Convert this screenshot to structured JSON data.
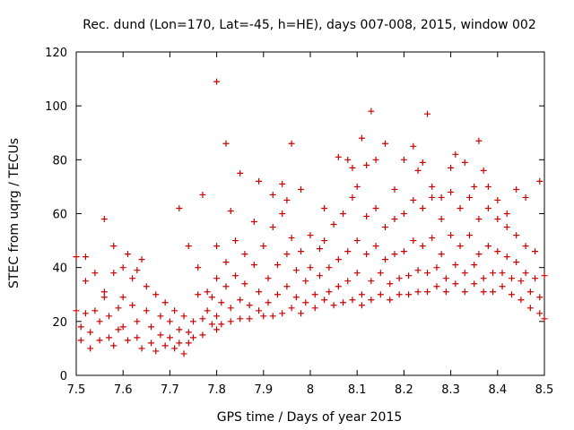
{
  "chart_data": {
    "type": "scatter",
    "title": "Rec. dund (Lon=170, Lat=-45, h=HE), days 007-008, 2015, window 002",
    "xlabel": "GPS time / Days of year 2015",
    "ylabel": "STEC from uqrg / TECUs",
    "xlim": [
      7.5,
      8.5
    ],
    "ylim": [
      0,
      120
    ],
    "x_ticks": [
      "7.5",
      "7.6",
      "7.7",
      "7.8",
      "7.9",
      "8",
      "8.1",
      "8.2",
      "8.3",
      "8.4",
      "8.5"
    ],
    "y_ticks": [
      "0",
      "20",
      "40",
      "60",
      "80",
      "100",
      "120"
    ],
    "grid": false,
    "marker": "+",
    "color": "#cc0000",
    "points": [
      [
        7.5,
        44
      ],
      [
        7.5,
        24
      ],
      [
        7.51,
        13
      ],
      [
        7.51,
        18
      ],
      [
        7.52,
        44
      ],
      [
        7.52,
        35
      ],
      [
        7.52,
        23
      ],
      [
        7.53,
        10
      ],
      [
        7.53,
        16
      ],
      [
        7.54,
        38
      ],
      [
        7.54,
        24
      ],
      [
        7.55,
        13
      ],
      [
        7.55,
        20
      ],
      [
        7.56,
        31
      ],
      [
        7.56,
        29
      ],
      [
        7.57,
        22
      ],
      [
        7.57,
        14
      ],
      [
        7.58,
        11
      ],
      [
        7.58,
        38
      ],
      [
        7.59,
        25
      ],
      [
        7.59,
        17
      ],
      [
        7.6,
        40
      ],
      [
        7.6,
        29
      ],
      [
        7.6,
        18
      ],
      [
        7.61,
        13
      ],
      [
        7.61,
        45
      ],
      [
        7.62,
        36
      ],
      [
        7.62,
        26
      ],
      [
        7.63,
        20
      ],
      [
        7.63,
        14
      ],
      [
        7.64,
        10
      ],
      [
        7.64,
        43
      ],
      [
        7.65,
        33
      ],
      [
        7.65,
        24
      ],
      [
        7.66,
        18
      ],
      [
        7.66,
        12
      ],
      [
        7.67,
        9
      ],
      [
        7.67,
        30
      ],
      [
        7.68,
        22
      ],
      [
        7.68,
        15
      ],
      [
        7.69,
        11
      ],
      [
        7.69,
        27
      ],
      [
        7.7,
        20
      ],
      [
        7.7,
        14
      ],
      [
        7.71,
        10
      ],
      [
        7.71,
        24
      ],
      [
        7.72,
        17
      ],
      [
        7.72,
        12
      ],
      [
        7.73,
        8
      ],
      [
        7.73,
        22
      ],
      [
        7.74,
        16
      ],
      [
        7.74,
        12
      ],
      [
        7.75,
        20
      ],
      [
        7.75,
        14
      ],
      [
        7.76,
        40
      ],
      [
        7.76,
        30
      ],
      [
        7.77,
        21
      ],
      [
        7.77,
        15
      ],
      [
        7.78,
        31
      ],
      [
        7.78,
        24
      ],
      [
        7.79,
        19
      ],
      [
        7.79,
        29
      ],
      [
        7.8,
        22
      ],
      [
        7.8,
        17
      ],
      [
        7.56,
        58
      ],
      [
        7.58,
        48
      ],
      [
        7.63,
        39
      ],
      [
        7.72,
        62
      ],
      [
        7.74,
        48
      ],
      [
        7.77,
        67
      ],
      [
        7.8,
        109
      ],
      [
        7.82,
        86
      ],
      [
        7.83,
        61
      ],
      [
        7.8,
        48
      ],
      [
        7.8,
        36
      ],
      [
        7.81,
        27
      ],
      [
        7.81,
        19
      ],
      [
        7.82,
        42
      ],
      [
        7.82,
        33
      ],
      [
        7.83,
        25
      ],
      [
        7.83,
        20
      ],
      [
        7.84,
        50
      ],
      [
        7.84,
        37
      ],
      [
        7.85,
        28
      ],
      [
        7.85,
        21
      ],
      [
        7.86,
        45
      ],
      [
        7.86,
        34
      ],
      [
        7.87,
        26
      ],
      [
        7.87,
        21
      ],
      [
        7.88,
        57
      ],
      [
        7.88,
        41
      ],
      [
        7.89,
        31
      ],
      [
        7.89,
        24
      ],
      [
        7.85,
        75
      ],
      [
        7.89,
        72
      ],
      [
        7.92,
        67
      ],
      [
        7.94,
        71
      ],
      [
        7.95,
        65
      ],
      [
        7.96,
        86
      ],
      [
        7.98,
        69
      ],
      [
        7.9,
        22
      ],
      [
        7.9,
        48
      ],
      [
        7.91,
        36
      ],
      [
        7.91,
        27
      ],
      [
        7.92,
        22
      ],
      [
        7.92,
        55
      ],
      [
        7.93,
        41
      ],
      [
        7.93,
        30
      ],
      [
        7.94,
        23
      ],
      [
        7.94,
        60
      ],
      [
        7.95,
        45
      ],
      [
        7.95,
        33
      ],
      [
        7.96,
        25
      ],
      [
        7.96,
        51
      ],
      [
        7.97,
        39
      ],
      [
        7.97,
        29
      ],
      [
        7.98,
        23
      ],
      [
        7.98,
        46
      ],
      [
        7.99,
        35
      ],
      [
        7.99,
        27
      ],
      [
        8.0,
        52
      ],
      [
        8.0,
        40
      ],
      [
        8.01,
        30
      ],
      [
        8.01,
        25
      ],
      [
        8.02,
        47
      ],
      [
        8.02,
        37
      ],
      [
        8.03,
        28
      ],
      [
        8.03,
        50
      ],
      [
        8.04,
        40
      ],
      [
        8.04,
        31
      ],
      [
        8.05,
        26
      ],
      [
        8.05,
        56
      ],
      [
        8.06,
        43
      ],
      [
        8.06,
        33
      ],
      [
        8.07,
        27
      ],
      [
        8.07,
        60
      ],
      [
        8.08,
        46
      ],
      [
        8.08,
        35
      ],
      [
        8.09,
        28
      ],
      [
        8.09,
        66
      ],
      [
        8.03,
        62
      ],
      [
        8.06,
        81
      ],
      [
        8.08,
        80
      ],
      [
        8.09,
        77
      ],
      [
        8.1,
        70
      ],
      [
        8.11,
        88
      ],
      [
        8.12,
        78
      ],
      [
        8.13,
        98
      ],
      [
        8.14,
        80
      ],
      [
        8.16,
        86
      ],
      [
        8.18,
        69
      ],
      [
        8.1,
        50
      ],
      [
        8.1,
        38
      ],
      [
        8.11,
        30
      ],
      [
        8.11,
        26
      ],
      [
        8.12,
        59
      ],
      [
        8.12,
        45
      ],
      [
        8.13,
        35
      ],
      [
        8.13,
        28
      ],
      [
        8.14,
        62
      ],
      [
        8.14,
        48
      ],
      [
        8.15,
        38
      ],
      [
        8.15,
        30
      ],
      [
        8.16,
        55
      ],
      [
        8.16,
        43
      ],
      [
        8.17,
        34
      ],
      [
        8.17,
        28
      ],
      [
        8.18,
        58
      ],
      [
        8.18,
        45
      ],
      [
        8.19,
        36
      ],
      [
        8.19,
        30
      ],
      [
        8.2,
        80
      ],
      [
        8.22,
        85
      ],
      [
        8.23,
        76
      ],
      [
        8.24,
        79
      ],
      [
        8.25,
        97
      ],
      [
        8.26,
        70
      ],
      [
        8.28,
        66
      ],
      [
        8.3,
        77
      ],
      [
        8.31,
        82
      ],
      [
        8.33,
        79
      ],
      [
        8.35,
        70
      ],
      [
        8.36,
        87
      ],
      [
        8.37,
        76
      ],
      [
        8.2,
        60
      ],
      [
        8.2,
        46
      ],
      [
        8.21,
        37
      ],
      [
        8.21,
        30
      ],
      [
        8.22,
        65
      ],
      [
        8.22,
        50
      ],
      [
        8.23,
        39
      ],
      [
        8.23,
        31
      ],
      [
        8.24,
        62
      ],
      [
        8.24,
        48
      ],
      [
        8.25,
        38
      ],
      [
        8.25,
        31
      ],
      [
        8.26,
        66
      ],
      [
        8.26,
        51
      ],
      [
        8.27,
        40
      ],
      [
        8.27,
        33
      ],
      [
        8.28,
        58
      ],
      [
        8.28,
        45
      ],
      [
        8.29,
        36
      ],
      [
        8.29,
        31
      ],
      [
        8.3,
        68
      ],
      [
        8.3,
        52
      ],
      [
        8.31,
        41
      ],
      [
        8.31,
        34
      ],
      [
        8.32,
        62
      ],
      [
        8.32,
        48
      ],
      [
        8.33,
        38
      ],
      [
        8.33,
        31
      ],
      [
        8.34,
        66
      ],
      [
        8.34,
        52
      ],
      [
        8.35,
        41
      ],
      [
        8.35,
        34
      ],
      [
        8.36,
        58
      ],
      [
        8.36,
        45
      ],
      [
        8.37,
        36
      ],
      [
        8.37,
        31
      ],
      [
        8.38,
        62
      ],
      [
        8.38,
        48
      ],
      [
        8.39,
        38
      ],
      [
        8.39,
        31
      ],
      [
        8.4,
        58
      ],
      [
        8.4,
        46
      ],
      [
        8.41,
        38
      ],
      [
        8.41,
        33
      ],
      [
        8.42,
        55
      ],
      [
        8.42,
        44
      ],
      [
        8.43,
        36
      ],
      [
        8.43,
        30
      ],
      [
        8.44,
        52
      ],
      [
        8.44,
        42
      ],
      [
        8.45,
        35
      ],
      [
        8.45,
        28
      ],
      [
        8.46,
        48
      ],
      [
        8.46,
        38
      ],
      [
        8.47,
        31
      ],
      [
        8.47,
        25
      ],
      [
        8.48,
        46
      ],
      [
        8.48,
        36
      ],
      [
        8.49,
        29
      ],
      [
        8.49,
        23
      ],
      [
        8.38,
        70
      ],
      [
        8.4,
        65
      ],
      [
        8.42,
        60
      ],
      [
        8.44,
        69
      ],
      [
        8.46,
        66
      ],
      [
        8.49,
        72
      ],
      [
        8.5,
        21
      ],
      [
        8.5,
        37
      ]
    ]
  }
}
